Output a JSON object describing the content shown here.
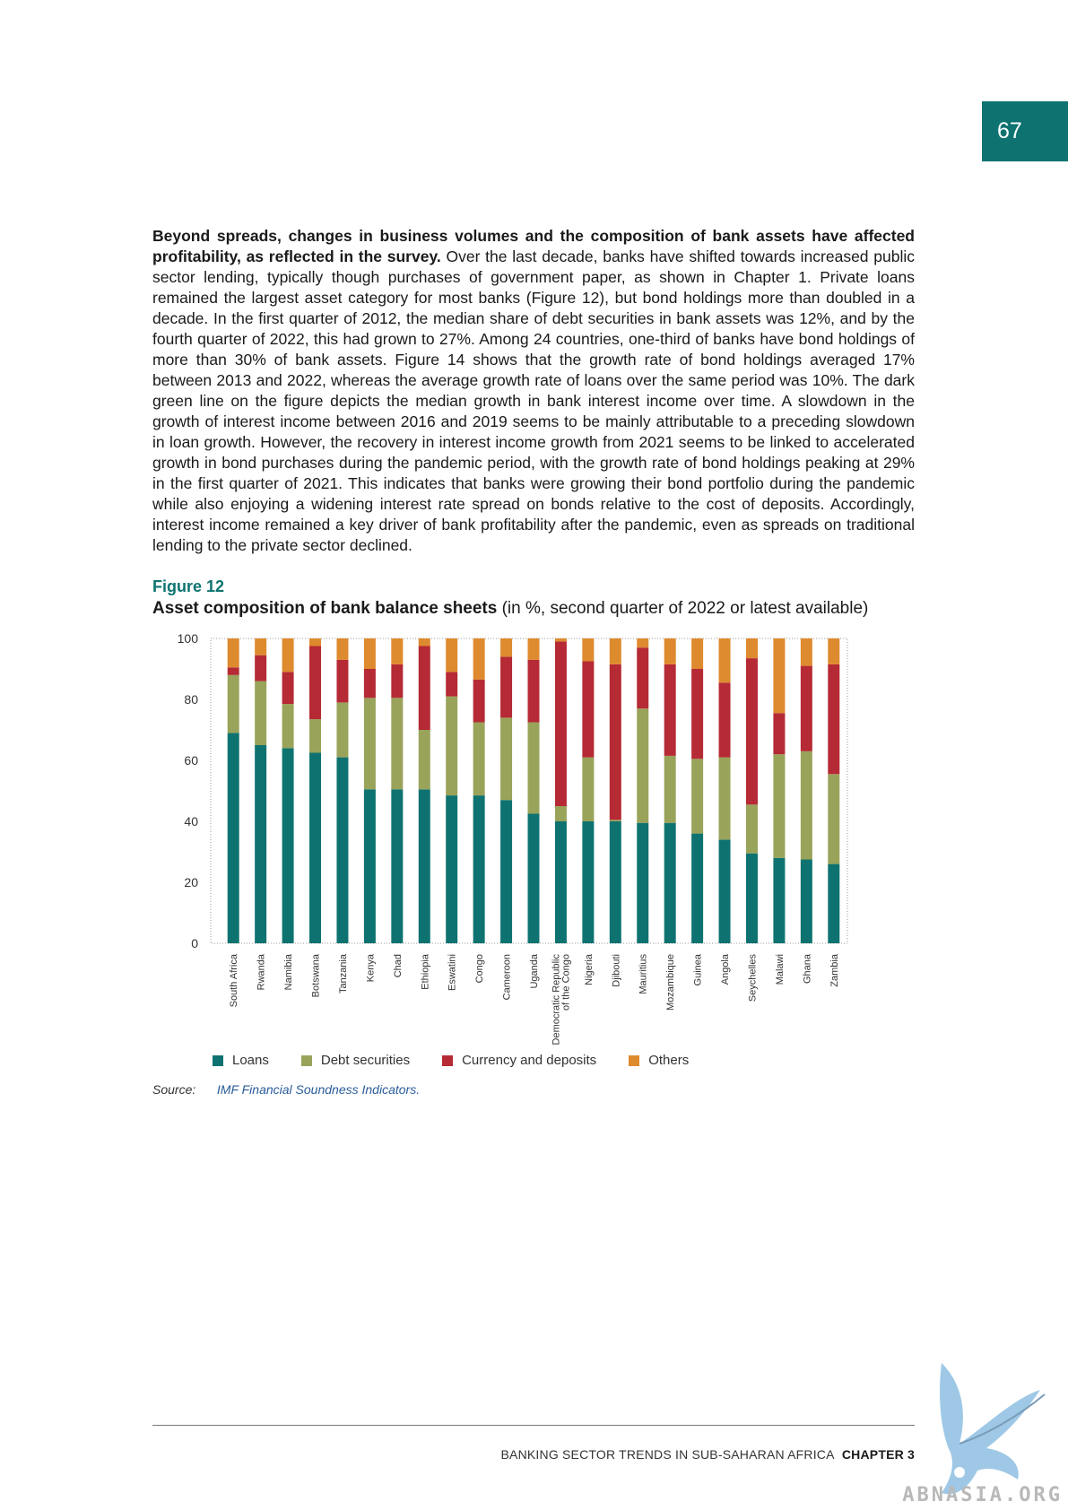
{
  "page_number": "67",
  "body": {
    "lead_bold": "Beyond spreads, changes in business volumes and the composition of bank assets have affected profitability, as reflected in the survey.",
    "text": " Over the last decade, banks have shifted towards increased public sector lending, typically though purchases of government paper, as shown in Chapter 1. Private loans remained the largest asset category for most banks (Figure 12), but bond holdings more than doubled in a decade. In the first quarter of 2012, the median share of debt securities in bank assets was 12%, and by the fourth quarter of 2022, this had grown to 27%. Among 24 countries, one-third of banks have bond holdings of more than 30% of bank assets. Figure 14 shows that the growth rate of bond holdings averaged 17% between 2013 and 2022, whereas the average growth rate of loans over the same period was 10%. The dark green line on the figure depicts the median growth in bank interest income over time. A slowdown in the growth of interest income between 2016 and 2019 seems to be mainly attributable to a preceding slowdown in loan growth. However, the recovery in interest income growth from 2021 seems to be linked to accelerated growth in bond purchases during the pandemic period, with the growth rate of bond holdings peaking at 29% in the first quarter of 2021. This indicates that banks were growing their bond portfolio during the pandemic while also enjoying a widening interest rate spread on bonds relative to the cost of deposits. Accordingly, interest income remained a key driver of bank profitability after the pandemic, even as spreads on traditional lending to the private sector declined."
  },
  "figure": {
    "label": "Figure 12",
    "title_bold": "Asset composition of bank balance sheets",
    "title_rest": " (in %, second quarter of 2022 or latest available)"
  },
  "chart_data": {
    "type": "bar",
    "stacked": true,
    "title": "Asset composition of bank balance sheets",
    "ylim": [
      0,
      100
    ],
    "yticks": [
      0,
      20,
      40,
      60,
      80,
      100
    ],
    "categories": [
      "South Africa",
      "Rwanda",
      "Namibia",
      "Botswana",
      "Tanzania",
      "Kenya",
      "Chad",
      "Ethiopia",
      "Eswatini",
      "Congo",
      "Cameroon",
      "Uganda",
      "Democratic Republic of the Congo",
      "Nigeria",
      "Djibouti",
      "Mauritius",
      "Mozambique",
      "Guinea",
      "Angola",
      "Seychelles",
      "Malawi",
      "Ghana",
      "Zambia"
    ],
    "category_lines": [
      [
        "South Africa"
      ],
      [
        "Rwanda"
      ],
      [
        "Namibia"
      ],
      [
        "Botswana"
      ],
      [
        "Tanzania"
      ],
      [
        "Kenya"
      ],
      [
        "Chad"
      ],
      [
        "Ethiopia"
      ],
      [
        "Eswatini"
      ],
      [
        "Congo"
      ],
      [
        "Cameroon"
      ],
      [
        "Uganda"
      ],
      [
        "Democratic Republic",
        "of the Congo"
      ],
      [
        "Nigeria"
      ],
      [
        "Djibouti"
      ],
      [
        "Mauritius"
      ],
      [
        "Mozambique"
      ],
      [
        "Guinea"
      ],
      [
        "Angola"
      ],
      [
        "Seychelles"
      ],
      [
        "Malawi"
      ],
      [
        "Ghana"
      ],
      [
        "Zambia"
      ]
    ],
    "series": [
      {
        "name": "Loans",
        "color": "#0e7370",
        "values": [
          69,
          65,
          64,
          62.5,
          61,
          50.5,
          50.5,
          50.5,
          48.5,
          48.5,
          47,
          42.5,
          40,
          40,
          40,
          39.5,
          39.5,
          36,
          34,
          29.5,
          28,
          27.5,
          26
        ]
      },
      {
        "name": "Debt securities",
        "color": "#9aa35a",
        "values": [
          19,
          21,
          14.5,
          11,
          18,
          30,
          30,
          19.5,
          32.5,
          24,
          27,
          30,
          5,
          21,
          0.5,
          37.5,
          22,
          24.5,
          27,
          16,
          34,
          35.5,
          29.5
        ]
      },
      {
        "name": "Currency and deposits",
        "color": "#b52a35",
        "values": [
          2.5,
          8.5,
          10.5,
          24,
          14,
          9.5,
          11,
          27.5,
          8,
          14,
          20,
          20.5,
          54,
          31.5,
          51,
          20,
          30,
          29.5,
          24.5,
          48,
          13.5,
          28,
          36
        ]
      },
      {
        "name": "Others",
        "color": "#de8a2e",
        "values": [
          9.5,
          5.5,
          11,
          2.5,
          7,
          10,
          8.5,
          2.5,
          11,
          13.5,
          6,
          7,
          1,
          7.5,
          8.5,
          3,
          8.5,
          10,
          14.5,
          6.5,
          24.5,
          9,
          8.5
        ]
      }
    ]
  },
  "source": {
    "label": "Source:",
    "text": "IMF Financial Soundness Indicators."
  },
  "footer": {
    "title": "BANKING SECTOR TRENDS IN SUB-SAHARAN AFRICA",
    "chapter": "CHAPTER 3"
  },
  "watermark": "ABNASIA.ORG"
}
